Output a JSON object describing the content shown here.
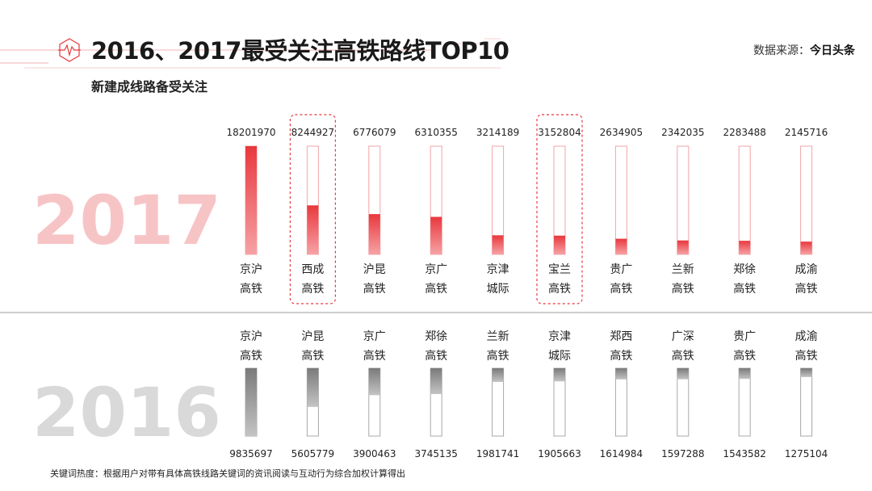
{
  "header": {
    "title": "2016、2017最受关注高铁路线TOP10",
    "subtitle": "新建成线路备受关注",
    "source_label": "数据来源：",
    "source_name": "今日头条"
  },
  "footnote": "关键词热度：根据用户对带有具体高铁线路关键词的资讯阅读与互动行为综合加权计算得出",
  "colors": {
    "accent": "#e8383d",
    "accent_light": "#f7c4c6",
    "gray_dark": "#777777",
    "gray_light": "#d6d6d6"
  },
  "chart_data": [
    {
      "type": "bar",
      "year_label": "2017",
      "ylim": [
        0,
        18201970
      ],
      "highlighted": [
        "西成高铁",
        "宝兰高铁"
      ],
      "categories": [
        [
          "京沪",
          "高铁"
        ],
        [
          "西成",
          "高铁"
        ],
        [
          "沪昆",
          "高铁"
        ],
        [
          "京广",
          "高铁"
        ],
        [
          "京津",
          "城际"
        ],
        [
          "宝兰",
          "高铁"
        ],
        [
          "贵广",
          "高铁"
        ],
        [
          "兰新",
          "高铁"
        ],
        [
          "郑徐",
          "高铁"
        ],
        [
          "成渝",
          "高铁"
        ]
      ],
      "values": [
        18201970,
        8244927,
        6776079,
        6310355,
        3214189,
        3152804,
        2634905,
        2342035,
        2283488,
        2145716
      ],
      "labels": [
        "18201970",
        "8244927",
        "6776079",
        "6310355",
        "3214189",
        "3152804",
        "2634905",
        "2342035",
        "2283488",
        "2145716"
      ]
    },
    {
      "type": "bar",
      "year_label": "2016",
      "ylim": [
        0,
        9835697
      ],
      "categories": [
        [
          "京沪",
          "高铁"
        ],
        [
          "沪昆",
          "高铁"
        ],
        [
          "京广",
          "高铁"
        ],
        [
          "郑徐",
          "高铁"
        ],
        [
          "兰新",
          "高铁"
        ],
        [
          "京津",
          "城际"
        ],
        [
          "郑西",
          "高铁"
        ],
        [
          "广深",
          "高铁"
        ],
        [
          "贵广",
          "高铁"
        ],
        [
          "成渝",
          "高铁"
        ]
      ],
      "values": [
        9835697,
        5605779,
        3900463,
        3745135,
        1981741,
        1905663,
        1614984,
        1597288,
        1543582,
        1275104
      ],
      "labels": [
        "9835697",
        "5605779",
        "3900463",
        "3745135",
        "1981741",
        "1905663",
        "1614984",
        "1597288",
        "1543582",
        "1275104"
      ]
    }
  ]
}
